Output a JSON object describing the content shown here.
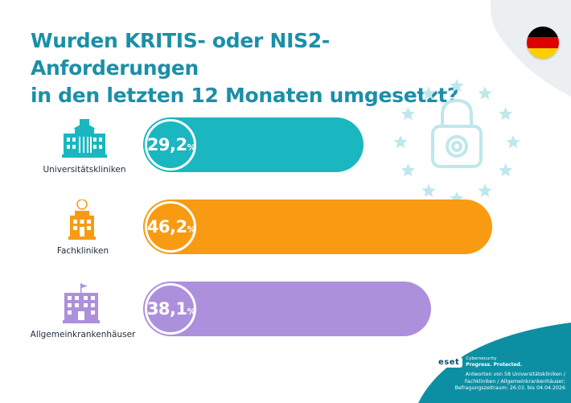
{
  "title_line1": "Wurden KRITIS- oder NIS2-Anforderungen",
  "title_line2": "in den letzten 12 Monaten umgesetzt?",
  "flag": {
    "colors": [
      "#000000",
      "#dd0000",
      "#ffce00"
    ]
  },
  "colors": {
    "title": "#1b8fa8",
    "footer": "#0d8fa3",
    "stars": "#bfe7ec",
    "corner": "#ebeff1"
  },
  "chart_data": {
    "type": "bar",
    "orientation": "horizontal",
    "categories": [
      "Universitätskliniken",
      "Fachkliniken",
      "Allgemeinkrankenhäuser"
    ],
    "values": [
      29.2,
      46.2,
      38.1
    ],
    "value_labels": [
      {
        "num": "29,2",
        "unit": "%"
      },
      {
        "num": "46,2",
        "unit": "%"
      },
      {
        "num": "38,1",
        "unit": "%"
      }
    ],
    "colors": [
      "#1ab7c0",
      "#f89b12",
      "#ad90dc"
    ],
    "icons": [
      "university-building-icon",
      "clinic-building-icon",
      "hospital-building-icon"
    ],
    "xlim": [
      0,
      100
    ]
  },
  "footer": {
    "brand": "eset",
    "tag_line1": "Cybersecurity",
    "tag_line2": "Progress. Protected.",
    "source_line1": "Antworten von 58 Universitätskliniken /",
    "source_line2": "Fachkliniken / Allgemeinkrankenhäuser;",
    "source_line3": "Befragungszeitraum: 26.03. bis 04.04.2026"
  }
}
